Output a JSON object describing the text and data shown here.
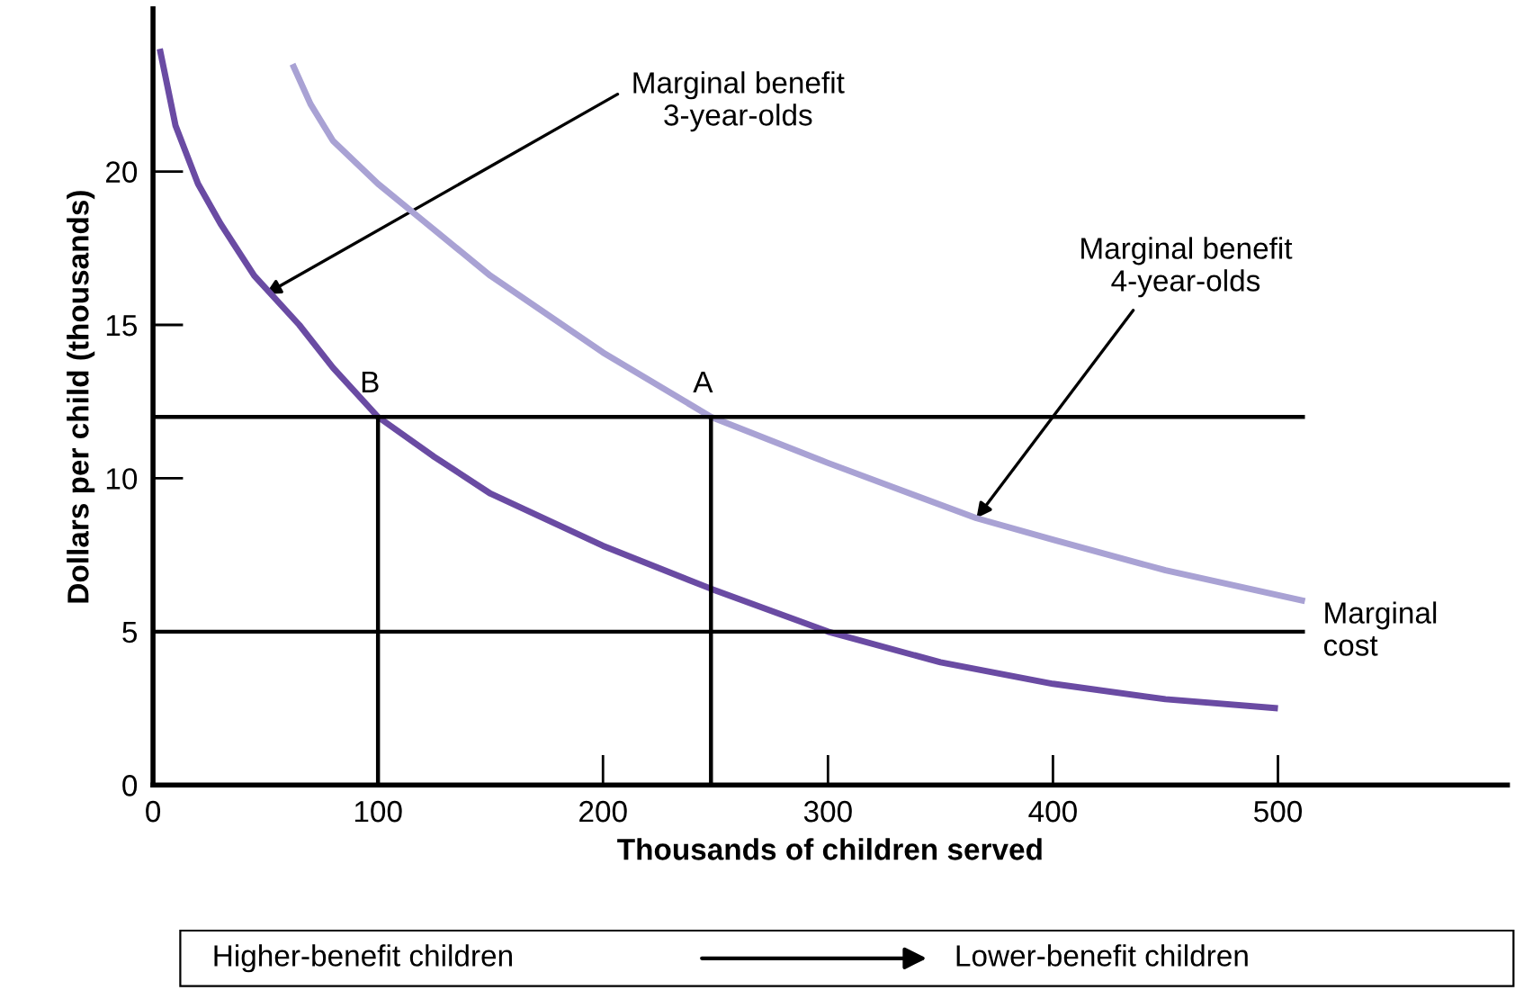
{
  "chart_data": {
    "type": "line",
    "xlabel": "Thousands of children served",
    "ylabel": "Dollars per child (thousands)",
    "xlim": [
      0,
      602
    ],
    "ylim": [
      0,
      25.3
    ],
    "xticks": [
      0,
      100,
      200,
      300,
      400,
      500
    ],
    "yticks": [
      0,
      5,
      10,
      15,
      20
    ],
    "grid": false,
    "legend": false,
    "marker": "none",
    "line_style": "solid",
    "series": [
      {
        "color": "#6a4ba3",
        "x": [
          3,
          10,
          20,
          30,
          45,
          65,
          80,
          100,
          125,
          150,
          200,
          248,
          300,
          350,
          400,
          450,
          500
        ],
        "values": [
          24,
          21.5,
          19.6,
          18.3,
          16.6,
          15,
          13.6,
          12,
          10.7,
          9.5,
          7.8,
          6.4,
          5,
          4,
          3.3,
          2.8,
          2.5
        ]
      },
      {
        "color": "#a9a2d4",
        "x": [
          62,
          70,
          80,
          100,
          120,
          150,
          200,
          248,
          300,
          366,
          400,
          450,
          512
        ],
        "values": [
          23.5,
          22.2,
          21,
          19.6,
          18.4,
          16.6,
          14.1,
          12,
          10.5,
          8.7,
          8,
          7,
          6
        ]
      },
      {
        "color": "#000000",
        "x": [
          0,
          512
        ],
        "values": [
          12,
          12
        ]
      },
      {
        "name": "Marginal\ncost",
        "color": "#000000",
        "x": [
          0,
          512
        ],
        "values": [
          5,
          5
        ]
      },
      {
        "color": "#000000",
        "x": [
          100,
          100
        ],
        "values": [
          0,
          12
        ]
      },
      {
        "color": "#000000",
        "x": [
          248,
          248
        ],
        "values": [
          0,
          12
        ]
      }
    ],
    "annotations": [
      {
        "text": "Marginal benefit\n3-year-olds",
        "x": 50,
        "y": 16
      },
      {
        "text": "Marginal benefit\n4-year-olds",
        "x": 366,
        "y": 8.7
      },
      {
        "text": "B",
        "x": 100,
        "y": 12
      },
      {
        "text": "A",
        "x": 248,
        "y": 12
      },
      "Higher-benefit children",
      "Lower-benefit children"
    ]
  }
}
